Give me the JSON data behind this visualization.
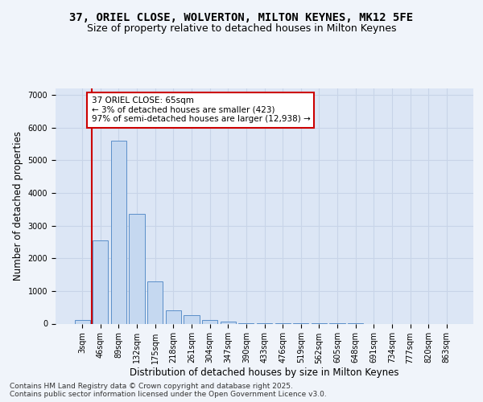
{
  "title_line1": "37, ORIEL CLOSE, WOLVERTON, MILTON KEYNES, MK12 5FE",
  "title_line2": "Size of property relative to detached houses in Milton Keynes",
  "xlabel": "Distribution of detached houses by size in Milton Keynes",
  "ylabel": "Number of detached properties",
  "categories": [
    "3sqm",
    "46sqm",
    "89sqm",
    "132sqm",
    "175sqm",
    "218sqm",
    "261sqm",
    "304sqm",
    "347sqm",
    "390sqm",
    "433sqm",
    "476sqm",
    "519sqm",
    "562sqm",
    "605sqm",
    "648sqm",
    "691sqm",
    "734sqm",
    "777sqm",
    "820sqm",
    "863sqm"
  ],
  "values": [
    100,
    2550,
    5600,
    3350,
    1300,
    400,
    250,
    100,
    50,
    20,
    10,
    5,
    3,
    2,
    1,
    1,
    0,
    0,
    0,
    0,
    0
  ],
  "bar_color": "#c5d8f0",
  "bar_edge_color": "#5b8fc9",
  "vline_x_index": 1,
  "vline_color": "#cc0000",
  "annotation_text": "37 ORIEL CLOSE: 65sqm\n← 3% of detached houses are smaller (423)\n97% of semi-detached houses are larger (12,938) →",
  "annotation_box_color": "#ffffff",
  "annotation_box_edge": "#cc0000",
  "ylim": [
    0,
    7200
  ],
  "yticks": [
    0,
    1000,
    2000,
    3000,
    4000,
    5000,
    6000,
    7000
  ],
  "grid_color": "#c8d4e8",
  "background_color": "#dce6f5",
  "footnote": "Contains HM Land Registry data © Crown copyright and database right 2025.\nContains public sector information licensed under the Open Government Licence v3.0.",
  "title_fontsize": 10,
  "subtitle_fontsize": 9,
  "tick_fontsize": 7,
  "ylabel_fontsize": 8.5,
  "xlabel_fontsize": 8.5,
  "footnote_fontsize": 6.5
}
